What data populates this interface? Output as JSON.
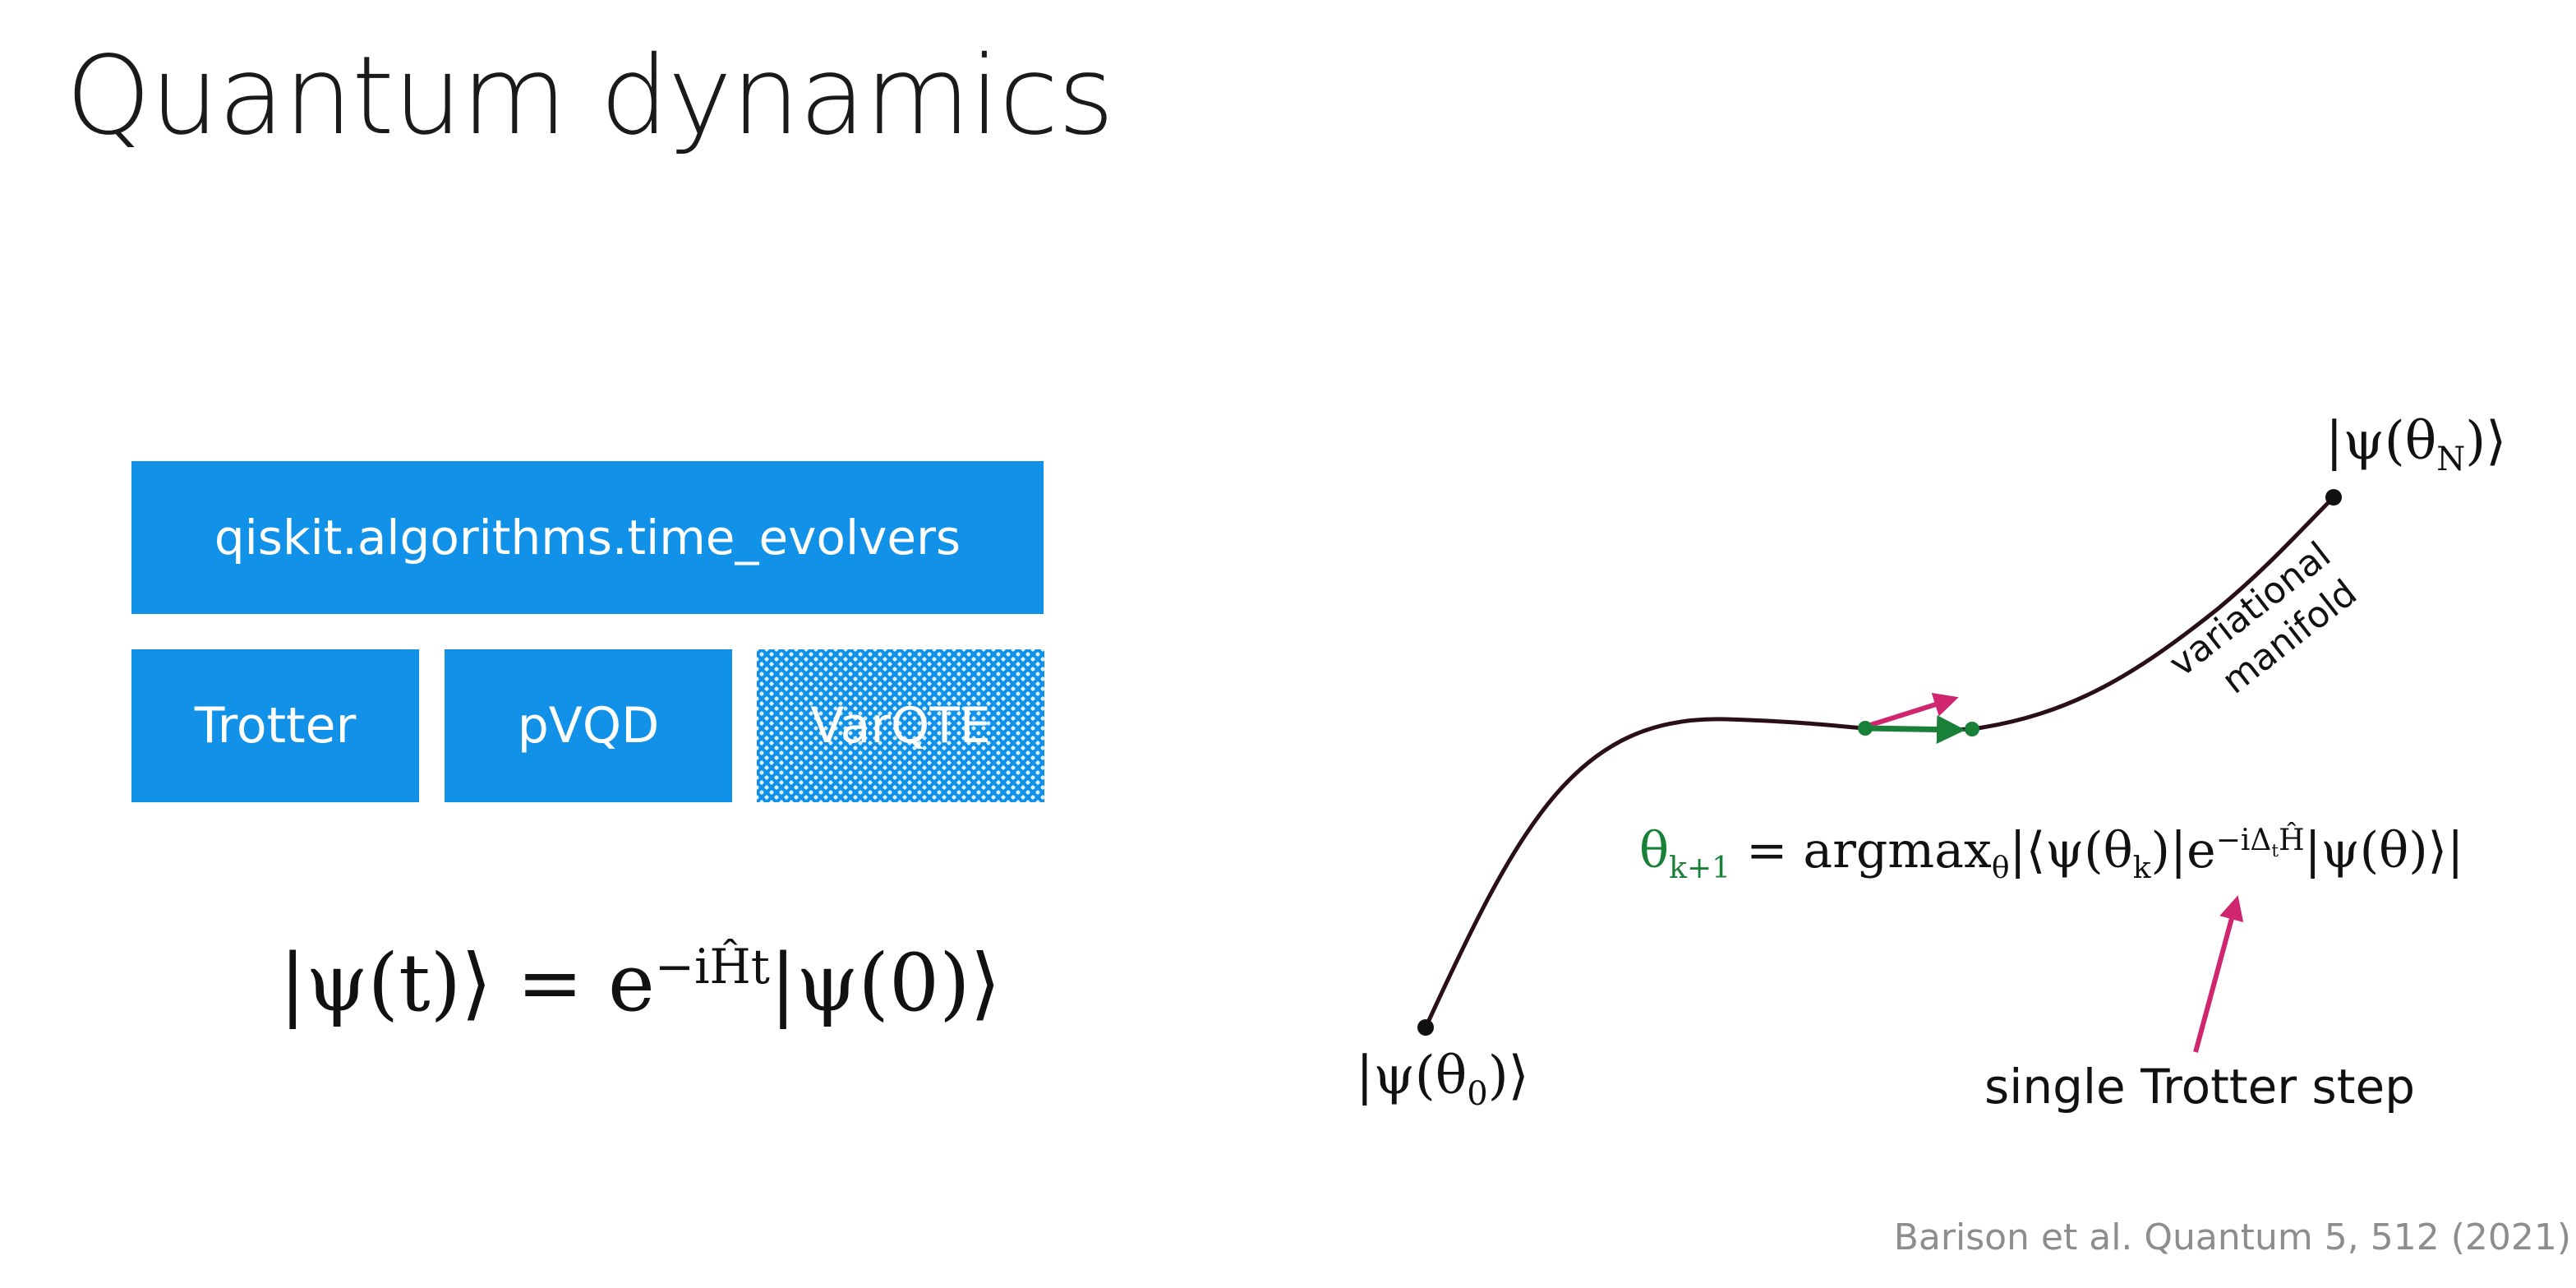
{
  "title": "Quantum dynamics",
  "module_box": {
    "label": "qiskit.algorithms.time_evolvers"
  },
  "methods": [
    {
      "label": "Trotter"
    },
    {
      "label": "pVQD"
    },
    {
      "label": "VarQTE"
    }
  ],
  "equations": {
    "schrodinger": {
      "lhs": "|ψ(t)⟩ = e",
      "exponent": "−iĤt",
      "rhs": "|ψ(0)⟩"
    },
    "update_rule": {
      "theta_next": "θ",
      "theta_next_sub": "k+1",
      "middle": " = argmax",
      "argmax_sub": "θ",
      "inner": "|⟨ψ(θ",
      "inner_sub": "k",
      "inner_tail": ")|e",
      "exponent": "−iΔ",
      "exponent_sub": "t",
      "exponent_tail": "Ĥ",
      "tail": "|ψ(θ)⟩|"
    }
  },
  "diagram": {
    "start_label": "|ψ(θ",
    "start_sub": "0",
    "start_tail": ")⟩",
    "end_label": "|ψ(θ",
    "end_sub": "N",
    "end_tail": ")⟩",
    "manifold_label_1": "variational",
    "manifold_label_2": "manifold",
    "trotter_label": "single Trotter step",
    "colors": {
      "curve": "#2a0f1a",
      "green": "#198038",
      "magenta": "#d02670",
      "dot": "#111111"
    }
  },
  "citation": "Barison et al. Quantum 5, 512 (2021)"
}
